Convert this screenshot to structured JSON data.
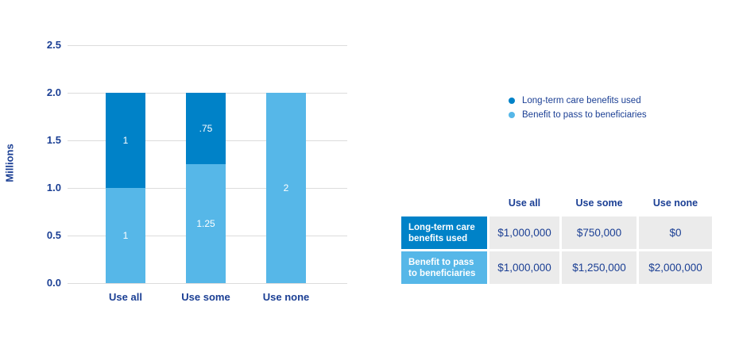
{
  "colors": {
    "dark_blue": "#0082c8",
    "light_blue": "#56b7e8",
    "navy_text": "#1b3f94",
    "gridline": "#dcdcdc",
    "table_cell_gray": "#ebebeb",
    "segment_label_white": "#ffffff"
  },
  "chart_data": {
    "type": "bar",
    "stacked": true,
    "title": "",
    "xlabel": "",
    "ylabel": "Millions",
    "ylim": [
      0,
      2.5
    ],
    "ytick_step": 0.5,
    "ytick_labels": [
      "0.0",
      "0.5",
      "1.0",
      "1.5",
      "2.0",
      "2.5"
    ],
    "grid": true,
    "legend_position": "right",
    "categories": [
      "Use all",
      "Use some",
      "Use none"
    ],
    "series": [
      {
        "name": "Long-term care benefits used",
        "color": "#0082c8",
        "values": [
          1,
          0.75,
          0
        ],
        "labels": [
          "1",
          ".75",
          ""
        ]
      },
      {
        "name": "Benefit to pass to beneficiaries",
        "color": "#56b7e8",
        "values": [
          1,
          1.25,
          2
        ],
        "labels": [
          "1",
          "1.25",
          "2"
        ]
      }
    ]
  },
  "legend": {
    "items": [
      {
        "label": "Long-term care benefits used",
        "color": "#0082c8"
      },
      {
        "label": "Benefit to pass to beneficiaries",
        "color": "#56b7e8"
      }
    ]
  },
  "table": {
    "column_headers": [
      "Use all",
      "Use some",
      "Use none"
    ],
    "rows": [
      {
        "label": "Long-term care benefits used",
        "color": "#0082c8",
        "values": [
          "$1,000,000",
          "$750,000",
          "$0"
        ]
      },
      {
        "label": "Benefit to pass to beneficiaries",
        "color": "#56b7e8",
        "values": [
          "$1,000,000",
          "$1,250,000",
          "$2,000,000"
        ]
      }
    ]
  }
}
